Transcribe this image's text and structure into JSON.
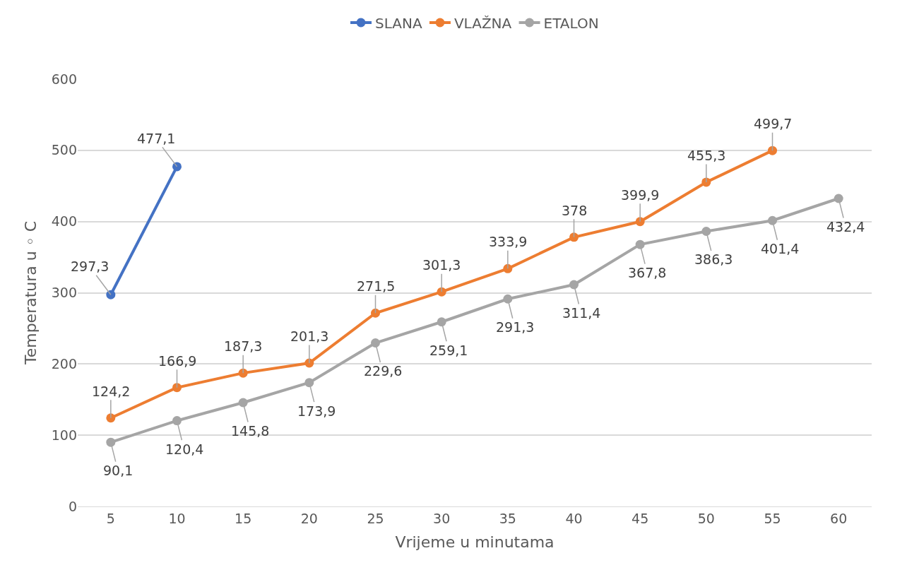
{
  "chart_data": {
    "type": "line",
    "xlabel": "Vrijeme u minutama",
    "ylabel": "Temperatura u ◦ C",
    "categories": [
      "5",
      "10",
      "15",
      "20",
      "25",
      "30",
      "35",
      "40",
      "45",
      "50",
      "55",
      "60"
    ],
    "series": [
      {
        "name": "SLANA",
        "color": "#4472c4",
        "values": [
          297.3,
          477.1,
          null,
          null,
          null,
          null,
          null,
          null,
          null,
          null,
          null,
          null
        ],
        "value_labels": [
          "297,3",
          "477,1",
          null,
          null,
          null,
          null,
          null,
          null,
          null,
          null,
          null,
          null
        ]
      },
      {
        "name": "VLAŽNA",
        "color": "#ed7d31",
        "values": [
          124.2,
          166.9,
          187.3,
          201.3,
          271.5,
          301.3,
          333.9,
          378,
          399.9,
          455.3,
          499.7,
          null
        ],
        "value_labels": [
          "124,2",
          "166,9",
          "187,3",
          "201,3",
          "271,5",
          "301,3",
          "333,9",
          "378",
          "399,9",
          "455,3",
          "499,7",
          null
        ]
      },
      {
        "name": "ETALON",
        "color": "#a5a5a5",
        "values": [
          90.1,
          120.4,
          145.8,
          173.9,
          229.6,
          259.1,
          291.3,
          311.4,
          367.8,
          386.3,
          401.4,
          432.4
        ],
        "value_labels": [
          "90,1",
          "120,4",
          "145,8",
          "173,9",
          "229,6",
          "259,1",
          "291,3",
          "311,4",
          "367,8",
          "386,3",
          "401,4",
          "432,4"
        ]
      }
    ],
    "ylim": [
      0,
      600
    ],
    "yticks": [
      0,
      100,
      200,
      300,
      400,
      500,
      600
    ],
    "grid": "y",
    "legend": "top",
    "marker": "circle",
    "line_style": "solid"
  }
}
